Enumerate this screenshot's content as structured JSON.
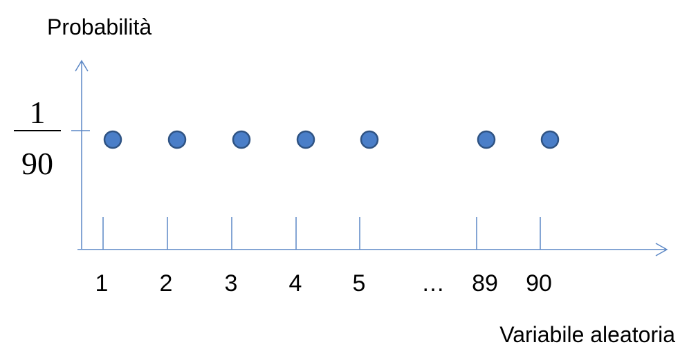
{
  "chart_data": {
    "type": "scatter",
    "title": "",
    "ylabel": "Probabilità",
    "xlabel": "Variabile aleatoria",
    "x_tick_labels": [
      "1",
      "2",
      "3",
      "4",
      "5",
      "…",
      "89",
      "90"
    ],
    "y_tick_label": {
      "numerator": "1",
      "denominator": "90"
    },
    "points": [
      {
        "x": "1",
        "y": 0.0111
      },
      {
        "x": "2",
        "y": 0.0111
      },
      {
        "x": "3",
        "y": 0.0111
      },
      {
        "x": "4",
        "y": 0.0111
      },
      {
        "x": "5",
        "y": 0.0111
      },
      {
        "x": "89",
        "y": 0.0111
      },
      {
        "x": "90",
        "y": 0.0111
      }
    ],
    "grid": false,
    "colors": {
      "axis": "#5b87c5",
      "point_fill": "#4a7ec8",
      "point_stroke": "#2f5383"
    }
  }
}
